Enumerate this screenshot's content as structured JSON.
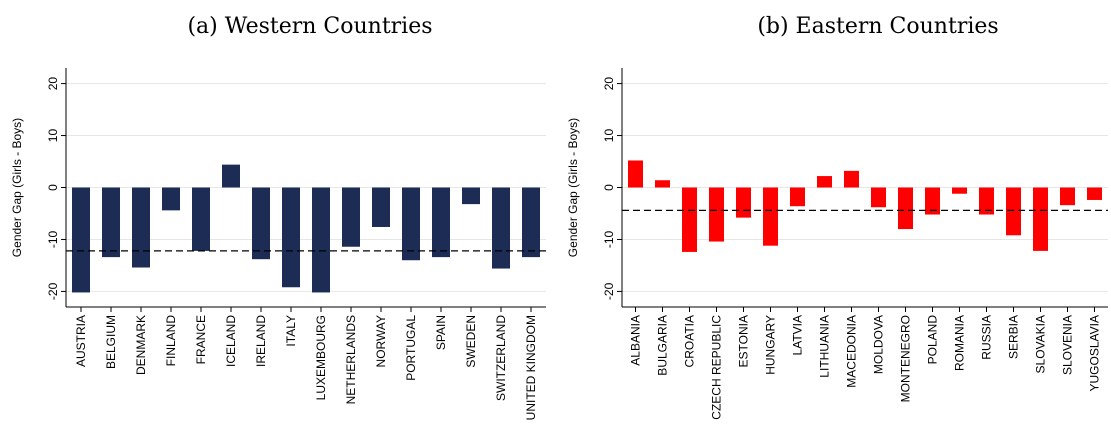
{
  "chart_data": [
    {
      "type": "bar",
      "title": "(a) Western Countries",
      "xlabel": "",
      "ylabel": "Gender Gap (Girls - Boys)",
      "ylim": [
        -23,
        23
      ],
      "yticks": [
        -20,
        -10,
        0,
        10,
        20
      ],
      "grid": true,
      "bar_color": "#1d2c55",
      "reference_line": -12.2,
      "categories": [
        "AUSTRIA",
        "BELGIUM",
        "DENMARK",
        "FINLAND",
        "FRANCE",
        "ICELAND",
        "IRELAND",
        "ITALY",
        "LUXEMBOURG",
        "NETHERLANDS",
        "NORWAY",
        "PORTUGAL",
        "SPAIN",
        "SWEDEN",
        "SWITZERLAND",
        "UNITED KINGDOM"
      ],
      "values": [
        -20.2,
        -13.4,
        -15.4,
        -4.4,
        -12.2,
        4.4,
        -13.8,
        -19.2,
        -20.2,
        -11.4,
        -7.6,
        -14.0,
        -13.4,
        -3.2,
        -15.6,
        -13.4
      ]
    },
    {
      "type": "bar",
      "title": "(b) Eastern Countries",
      "xlabel": "",
      "ylabel": "Gender Gap (Girls - Boys)",
      "ylim": [
        -23,
        23
      ],
      "yticks": [
        -20,
        -10,
        0,
        10,
        20
      ],
      "grid": true,
      "bar_color": "#ff0000",
      "reference_line": -4.4,
      "categories": [
        "ALBANIA",
        "BULGARIA",
        "CROATIA",
        "CZECH REPUBLIC",
        "ESTONIA",
        "HUNGARY",
        "LATVIA",
        "LITHUANIA",
        "MACEDONIA",
        "MOLDOVA",
        "MONTENEGRO",
        "POLAND",
        "ROMANIA",
        "RUSSIA",
        "SERBIA",
        "SLOVAKIA",
        "SLOVENIA",
        "YUGOSLAVIA"
      ],
      "values": [
        5.2,
        1.4,
        -12.4,
        -10.4,
        -5.8,
        -11.2,
        -3.6,
        2.2,
        3.2,
        -3.8,
        -8.0,
        -5.2,
        -1.2,
        -5.2,
        -9.2,
        -12.2,
        -3.4,
        -2.4
      ]
    }
  ]
}
